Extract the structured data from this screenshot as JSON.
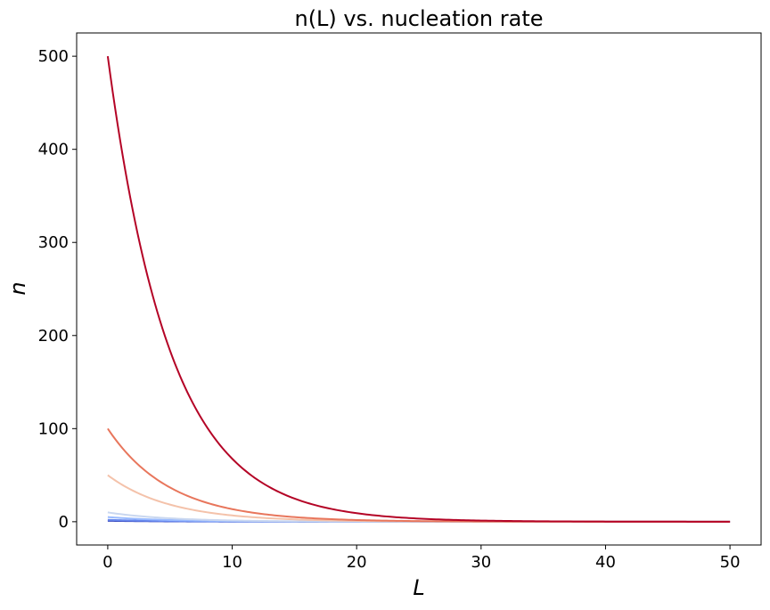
{
  "chart_data": {
    "type": "line",
    "title": "n(L) vs. nucleation rate",
    "xlabel": "L",
    "ylabel": "n",
    "xlim": [
      -2.5,
      52.5
    ],
    "ylim": [
      -25,
      525
    ],
    "xticks": [
      0,
      10,
      20,
      30,
      40,
      50
    ],
    "yticks": [
      0,
      100,
      200,
      300,
      400,
      500
    ],
    "grid": false,
    "legend": "none",
    "x_range": [
      0,
      50
    ],
    "decay_length": 5,
    "series": [
      {
        "n0": 1,
        "color": "#3b4cc0"
      },
      {
        "n0": 2,
        "color": "#6788ee"
      },
      {
        "n0": 5,
        "color": "#9abbff"
      },
      {
        "n0": 10,
        "color": "#c9d7f0"
      },
      {
        "n0": 50,
        "color": "#f4c2aa"
      },
      {
        "n0": 100,
        "color": "#e8765c"
      },
      {
        "n0": 500,
        "color": "#b40426"
      }
    ]
  }
}
